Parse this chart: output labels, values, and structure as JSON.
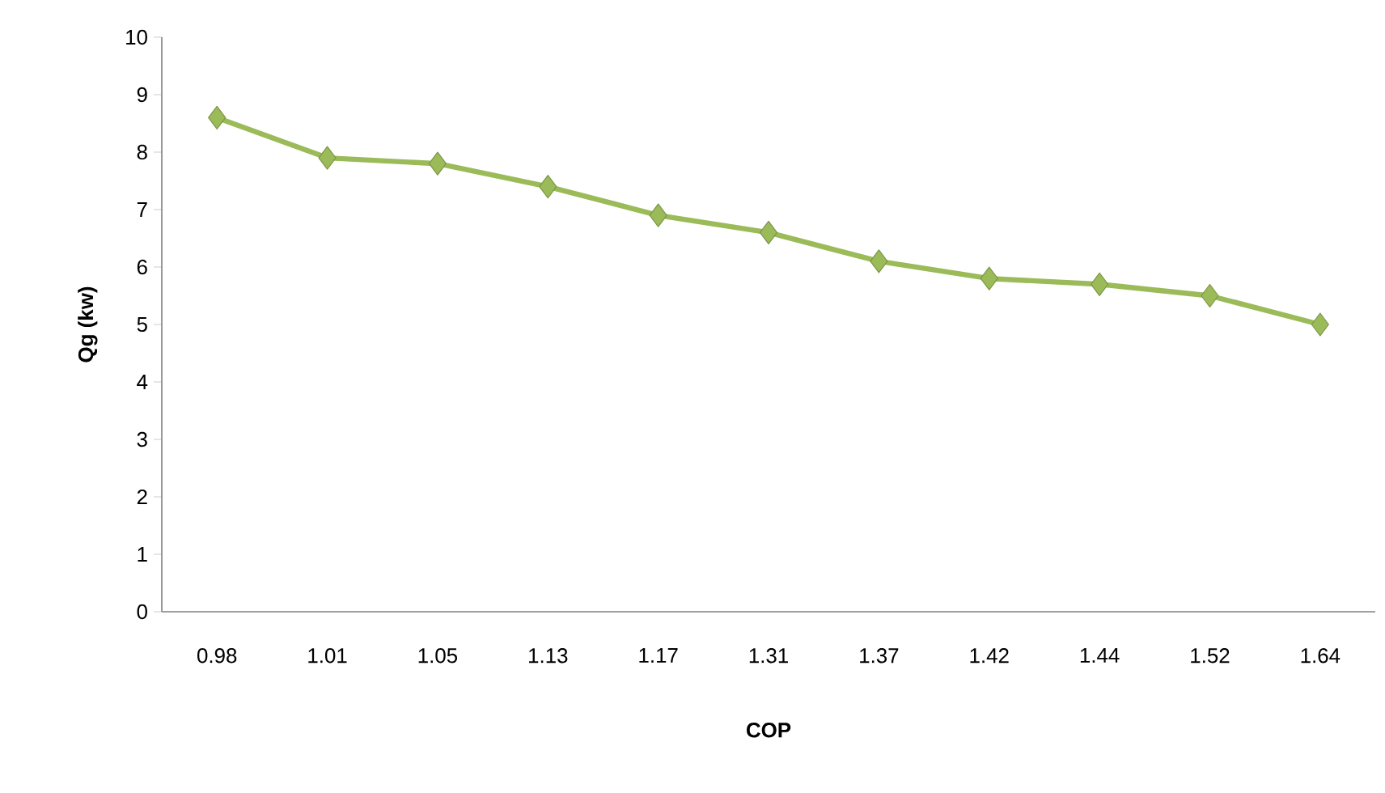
{
  "chart_data": {
    "type": "line",
    "xlabel": "COP",
    "ylabel": "Qg (kw)",
    "categories": [
      "0.98",
      "1.01",
      "1.05",
      "1.13",
      "1.17",
      "1.31",
      "1.37",
      "1.42",
      "1.44",
      "1.52",
      "1.64"
    ],
    "values": [
      8.6,
      7.9,
      7.8,
      7.4,
      6.9,
      6.6,
      6.1,
      5.8,
      5.7,
      5.5,
      5.0
    ],
    "color": "#9bbb59",
    "marker": "diamond",
    "line_style": "solid",
    "ylim": [
      0,
      10
    ],
    "yticks": [
      0,
      1,
      2,
      3,
      4,
      5,
      6,
      7,
      8,
      9,
      10
    ]
  }
}
